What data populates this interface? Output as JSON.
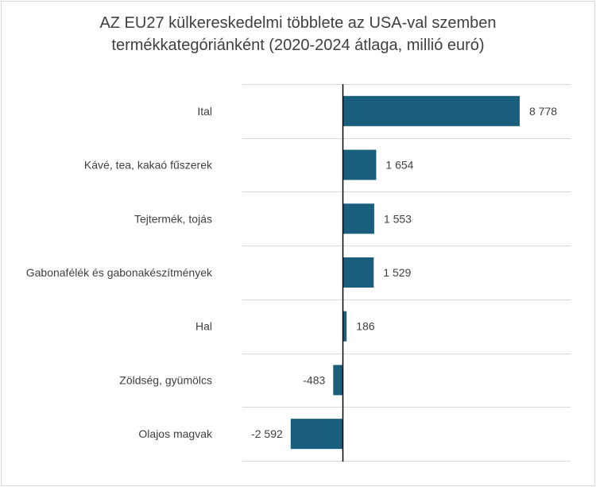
{
  "chart_data": {
    "type": "bar",
    "orientation": "horizontal",
    "title_line1": "AZ EU27 külkereskedelmi többlete az USA-val szemben",
    "title_line2": "termékkategóriánként (2020-2024 átlaga, millió euró)",
    "xlabel": "",
    "ylabel": "",
    "categories": [
      "Ital",
      "Kávé, tea, kakaó fűszerek",
      "Tejtermék, tojás",
      "Gabonafélék és gabonakészítmények",
      "Hal",
      "Zöldség, gyümölcs",
      "Olajos magvak"
    ],
    "values": [
      8778,
      1654,
      1553,
      1529,
      186,
      -483,
      -2592
    ],
    "value_labels": [
      "8 778",
      "1 654",
      "1 553",
      "1 529",
      "186",
      "-483",
      "-2 592"
    ],
    "xlim": [
      -5000,
      10000
    ],
    "grid": "horizontal separators between categories",
    "legend": "none",
    "bar_color": "#1a5e7e"
  }
}
